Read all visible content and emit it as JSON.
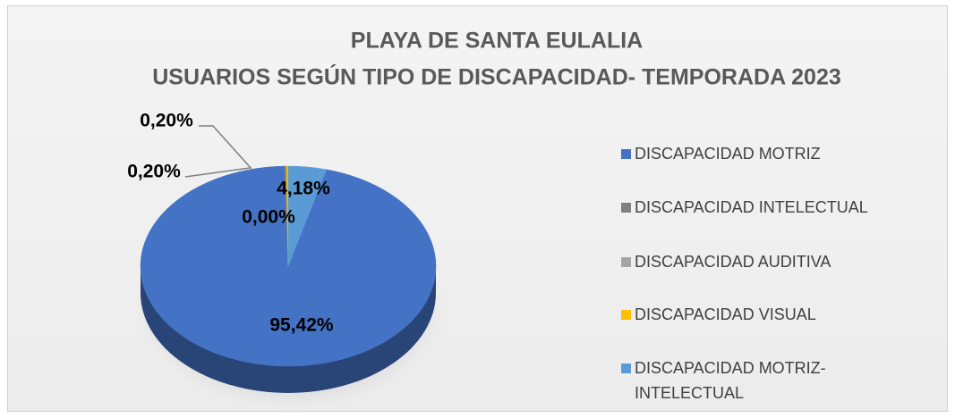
{
  "chart_data": {
    "type": "pie",
    "title": "PLAYA DE SANTA EULALIA",
    "subtitle": "USUARIOS SEGÚN TIPO DE DISCAPACIDAD- TEMPORADA 2023",
    "categories": [
      "DISCAPACIDAD MOTRIZ",
      "DISCAPACIDAD INTELECTUAL",
      "DISCAPACIDAD AUDITIVA",
      "DISCAPACIDAD VISUAL",
      "DISCAPACIDAD MOTRIZ-INTELECTUAL"
    ],
    "values": [
      95.42,
      0.2,
      0.0,
      0.2,
      4.18
    ],
    "value_labels": [
      "95,42%",
      "0,20%",
      "0,00%",
      "0,20%",
      "4,18%"
    ],
    "colors": [
      "#4472c4",
      "#7f7f7f",
      "#a5a5a5",
      "#ffc000",
      "#5b9bd5"
    ],
    "legend": "right"
  }
}
